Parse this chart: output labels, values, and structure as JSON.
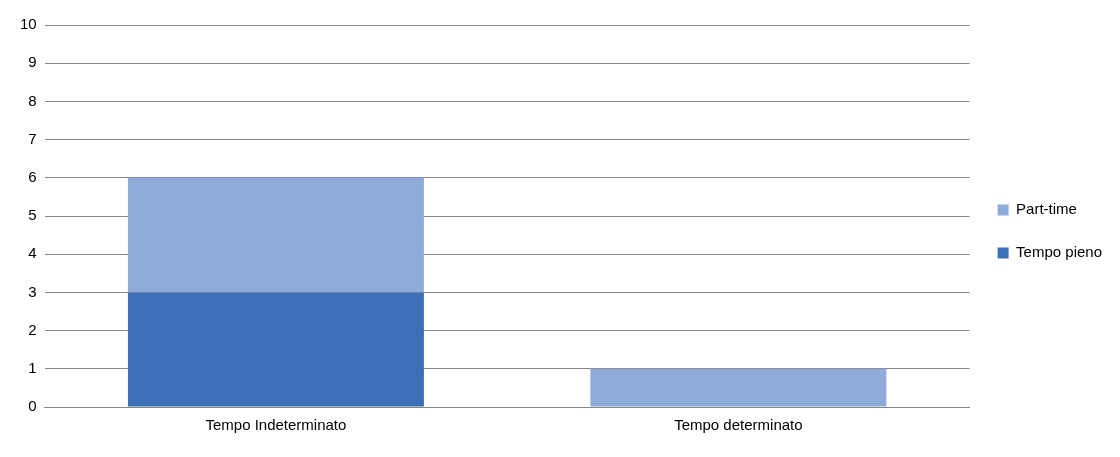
{
  "chart_data": {
    "type": "bar",
    "categories": [
      "Tempo Indeterminato",
      "Tempo determinato"
    ],
    "series": [
      {
        "name": "Tempo pieno",
        "color": "#3b6fb6",
        "values": [
          3,
          0
        ]
      },
      {
        "name": "Part-time",
        "color": "#8eabd9",
        "values": [
          3,
          1
        ]
      }
    ],
    "stacked": true,
    "ylim": [
      0,
      10
    ],
    "yticks": [
      0,
      1,
      2,
      3,
      4,
      5,
      6,
      7,
      8,
      9,
      10
    ],
    "grid": "y",
    "legend": "right"
  }
}
